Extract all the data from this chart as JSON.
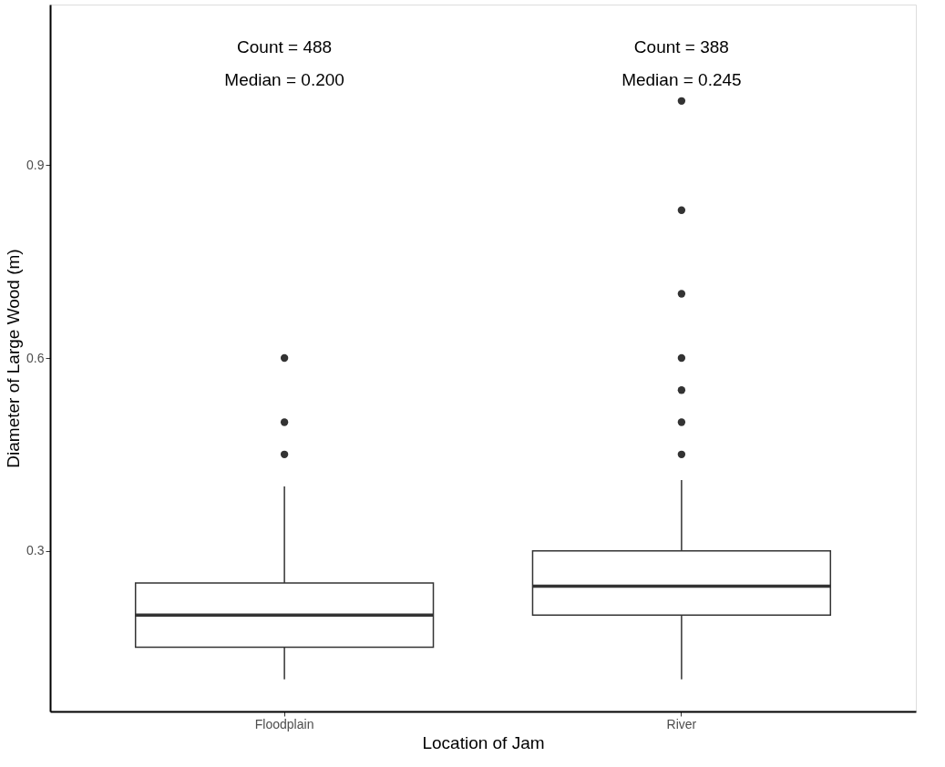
{
  "chart_data": {
    "type": "box",
    "xlabel": "Location of Jam",
    "ylabel": "Diameter of Large Wood (m)",
    "categories": [
      "Floodplain",
      "River"
    ],
    "boxes": [
      {
        "low": 0.1,
        "q1": 0.15,
        "median": 0.2,
        "q3": 0.25,
        "high": 0.4,
        "outliers": [
          0.45,
          0.5,
          0.6
        ]
      },
      {
        "low": 0.1,
        "q1": 0.2,
        "median": 0.245,
        "q3": 0.3,
        "high": 0.41,
        "outliers": [
          0.45,
          0.5,
          0.55,
          0.6,
          0.7,
          0.83,
          1.0
        ]
      }
    ],
    "color": "#333333",
    "ylim": [
      0.05,
      1.15
    ],
    "yticks": [
      0.3,
      0.6,
      0.9
    ],
    "grid": false,
    "annotations": [
      "Count = 488",
      "Median = 0.200",
      "Count = 388",
      "Median = 0.245"
    ]
  }
}
